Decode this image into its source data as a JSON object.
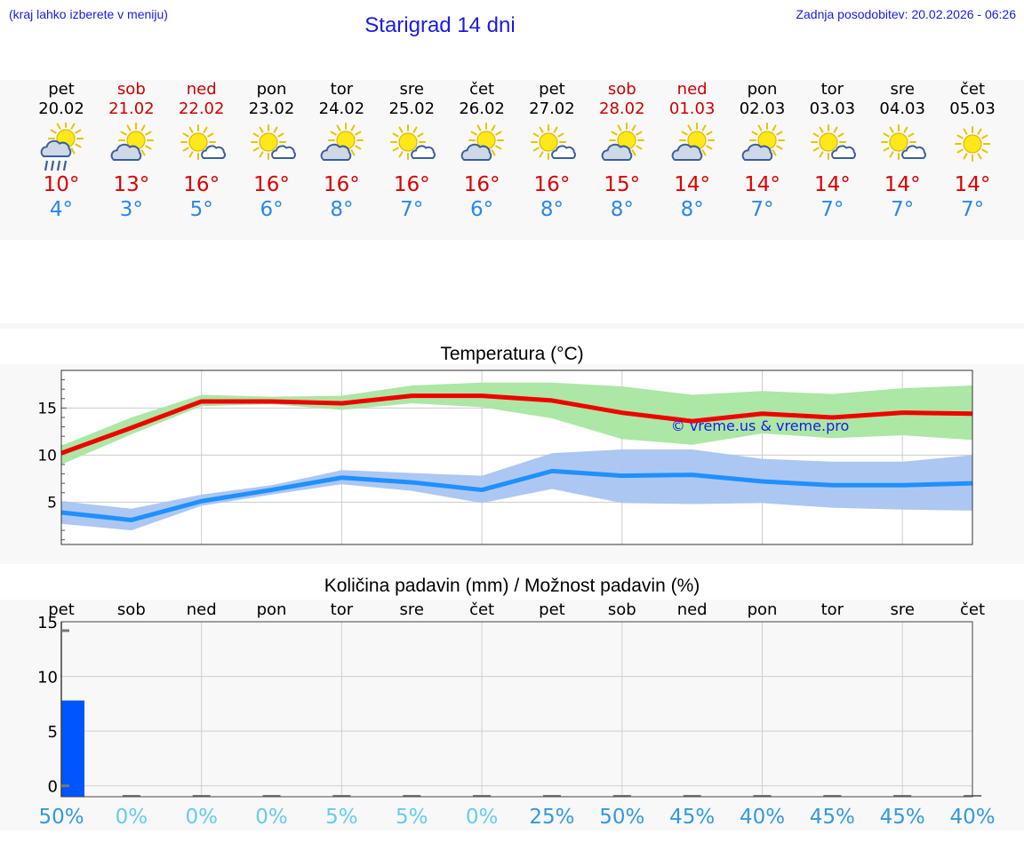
{
  "header": {
    "hint": "(kraj lahko izberete v meniju)",
    "title": "Starigrad 14 dni",
    "updated": "Zadnja posodobitev: 20.02.2026 - 06:26"
  },
  "days": [
    {
      "name": "pet",
      "date": "20.02",
      "weekend": false,
      "icon": "sun-cloud-rain-icon",
      "tmax": "10°",
      "tmin": "4°",
      "precip_chance": "50%"
    },
    {
      "name": "sob",
      "date": "21.02",
      "weekend": true,
      "icon": "sun-cloud-icon",
      "tmax": "13°",
      "tmin": "3°",
      "precip_chance": "0%"
    },
    {
      "name": "ned",
      "date": "22.02",
      "weekend": true,
      "icon": "sun-small-cloud-icon",
      "tmax": "16°",
      "tmin": "5°",
      "precip_chance": "0%"
    },
    {
      "name": "pon",
      "date": "23.02",
      "weekend": false,
      "icon": "sun-small-cloud-icon",
      "tmax": "16°",
      "tmin": "6°",
      "precip_chance": "0%"
    },
    {
      "name": "tor",
      "date": "24.02",
      "weekend": false,
      "icon": "sun-cloud-icon",
      "tmax": "16°",
      "tmin": "8°",
      "precip_chance": "5%"
    },
    {
      "name": "sre",
      "date": "25.02",
      "weekend": false,
      "icon": "sun-small-cloud-icon",
      "tmax": "16°",
      "tmin": "7°",
      "precip_chance": "5%"
    },
    {
      "name": "čet",
      "date": "26.02",
      "weekend": false,
      "icon": "sun-cloud-icon",
      "tmax": "16°",
      "tmin": "6°",
      "precip_chance": "0%"
    },
    {
      "name": "pet",
      "date": "27.02",
      "weekend": false,
      "icon": "sun-small-cloud-icon",
      "tmax": "16°",
      "tmin": "8°",
      "precip_chance": "25%"
    },
    {
      "name": "sob",
      "date": "28.02",
      "weekend": true,
      "icon": "sun-cloud-icon",
      "tmax": "15°",
      "tmin": "8°",
      "precip_chance": "50%"
    },
    {
      "name": "ned",
      "date": "01.03",
      "weekend": true,
      "icon": "sun-cloud-icon",
      "tmax": "14°",
      "tmin": "8°",
      "precip_chance": "45%"
    },
    {
      "name": "pon",
      "date": "02.03",
      "weekend": false,
      "icon": "sun-cloud-icon",
      "tmax": "14°",
      "tmin": "7°",
      "precip_chance": "40%"
    },
    {
      "name": "tor",
      "date": "03.03",
      "weekend": false,
      "icon": "sun-small-cloud-icon",
      "tmax": "14°",
      "tmin": "7°",
      "precip_chance": "45%"
    },
    {
      "name": "sre",
      "date": "04.03",
      "weekend": false,
      "icon": "sun-small-cloud-icon",
      "tmax": "14°",
      "tmin": "7°",
      "precip_chance": "45%"
    },
    {
      "name": "čet",
      "date": "05.03",
      "weekend": false,
      "icon": "sun-icon",
      "tmax": "14°",
      "tmin": "7°",
      "precip_chance": "40%"
    }
  ],
  "colors": {
    "max_line": "#f00000",
    "max_band": "#a8e6a0",
    "min_line": "#1e90ff",
    "min_band": "#a9c4f2",
    "precip_bar": "#0055ff",
    "chance_strong": "#3399dd",
    "chance_weak": "#66ccee"
  },
  "chart_data": [
    {
      "type": "line",
      "title": "Temperatura (°C)",
      "watermark": "© vreme.us & vreme.pro",
      "x": [
        0,
        1,
        2,
        3,
        4,
        5,
        6,
        7,
        8,
        9,
        10,
        11,
        12,
        13
      ],
      "ylim": [
        0.5,
        19
      ],
      "yticks": [
        5,
        10,
        15
      ],
      "series": [
        {
          "name": "max",
          "values": [
            10.2,
            12.9,
            15.7,
            15.7,
            15.5,
            16.3,
            16.3,
            15.8,
            14.5,
            13.6,
            14.4,
            14.0,
            14.5,
            14.4
          ],
          "band_high": [
            11.0,
            14.0,
            16.4,
            16.2,
            16.3,
            17.4,
            17.7,
            17.7,
            17.3,
            16.4,
            16.8,
            16.5,
            17.1,
            17.4
          ],
          "band_low": [
            9.0,
            12.2,
            15.2,
            15.4,
            14.8,
            15.5,
            15.1,
            13.9,
            11.7,
            11.1,
            12.3,
            11.8,
            12.1,
            11.6
          ]
        },
        {
          "name": "min",
          "values": [
            3.9,
            3.1,
            5.1,
            6.3,
            7.6,
            7.1,
            6.3,
            8.3,
            7.8,
            7.9,
            7.2,
            6.8,
            6.8,
            7.0
          ],
          "band_high": [
            5.1,
            4.3,
            5.8,
            6.8,
            8.4,
            8.1,
            7.8,
            10.2,
            10.6,
            10.6,
            9.6,
            9.3,
            9.3,
            10.0
          ],
          "band_low": [
            2.7,
            2.0,
            4.6,
            5.8,
            6.9,
            6.2,
            4.9,
            6.4,
            4.9,
            4.8,
            4.9,
            4.4,
            4.2,
            4.1
          ]
        }
      ]
    },
    {
      "type": "bar",
      "title": "Količina padavin (mm) / Možnost padavin (%)",
      "categories": [
        "pet",
        "sob",
        "ned",
        "pon",
        "tor",
        "sre",
        "čet",
        "pet",
        "sob",
        "ned",
        "pon",
        "tor",
        "sre",
        "čet"
      ],
      "values": [
        7.8,
        0,
        0,
        0,
        0,
        0,
        0,
        0,
        0,
        0,
        0,
        0,
        0,
        0
      ],
      "ylabel": "mm",
      "ylim": [
        -1,
        15
      ],
      "yticks": [
        0,
        5,
        10,
        15
      ],
      "chance": [
        "50%",
        "0%",
        "0%",
        "0%",
        "5%",
        "5%",
        "0%",
        "25%",
        "50%",
        "45%",
        "40%",
        "45%",
        "45%",
        "40%"
      ]
    }
  ]
}
